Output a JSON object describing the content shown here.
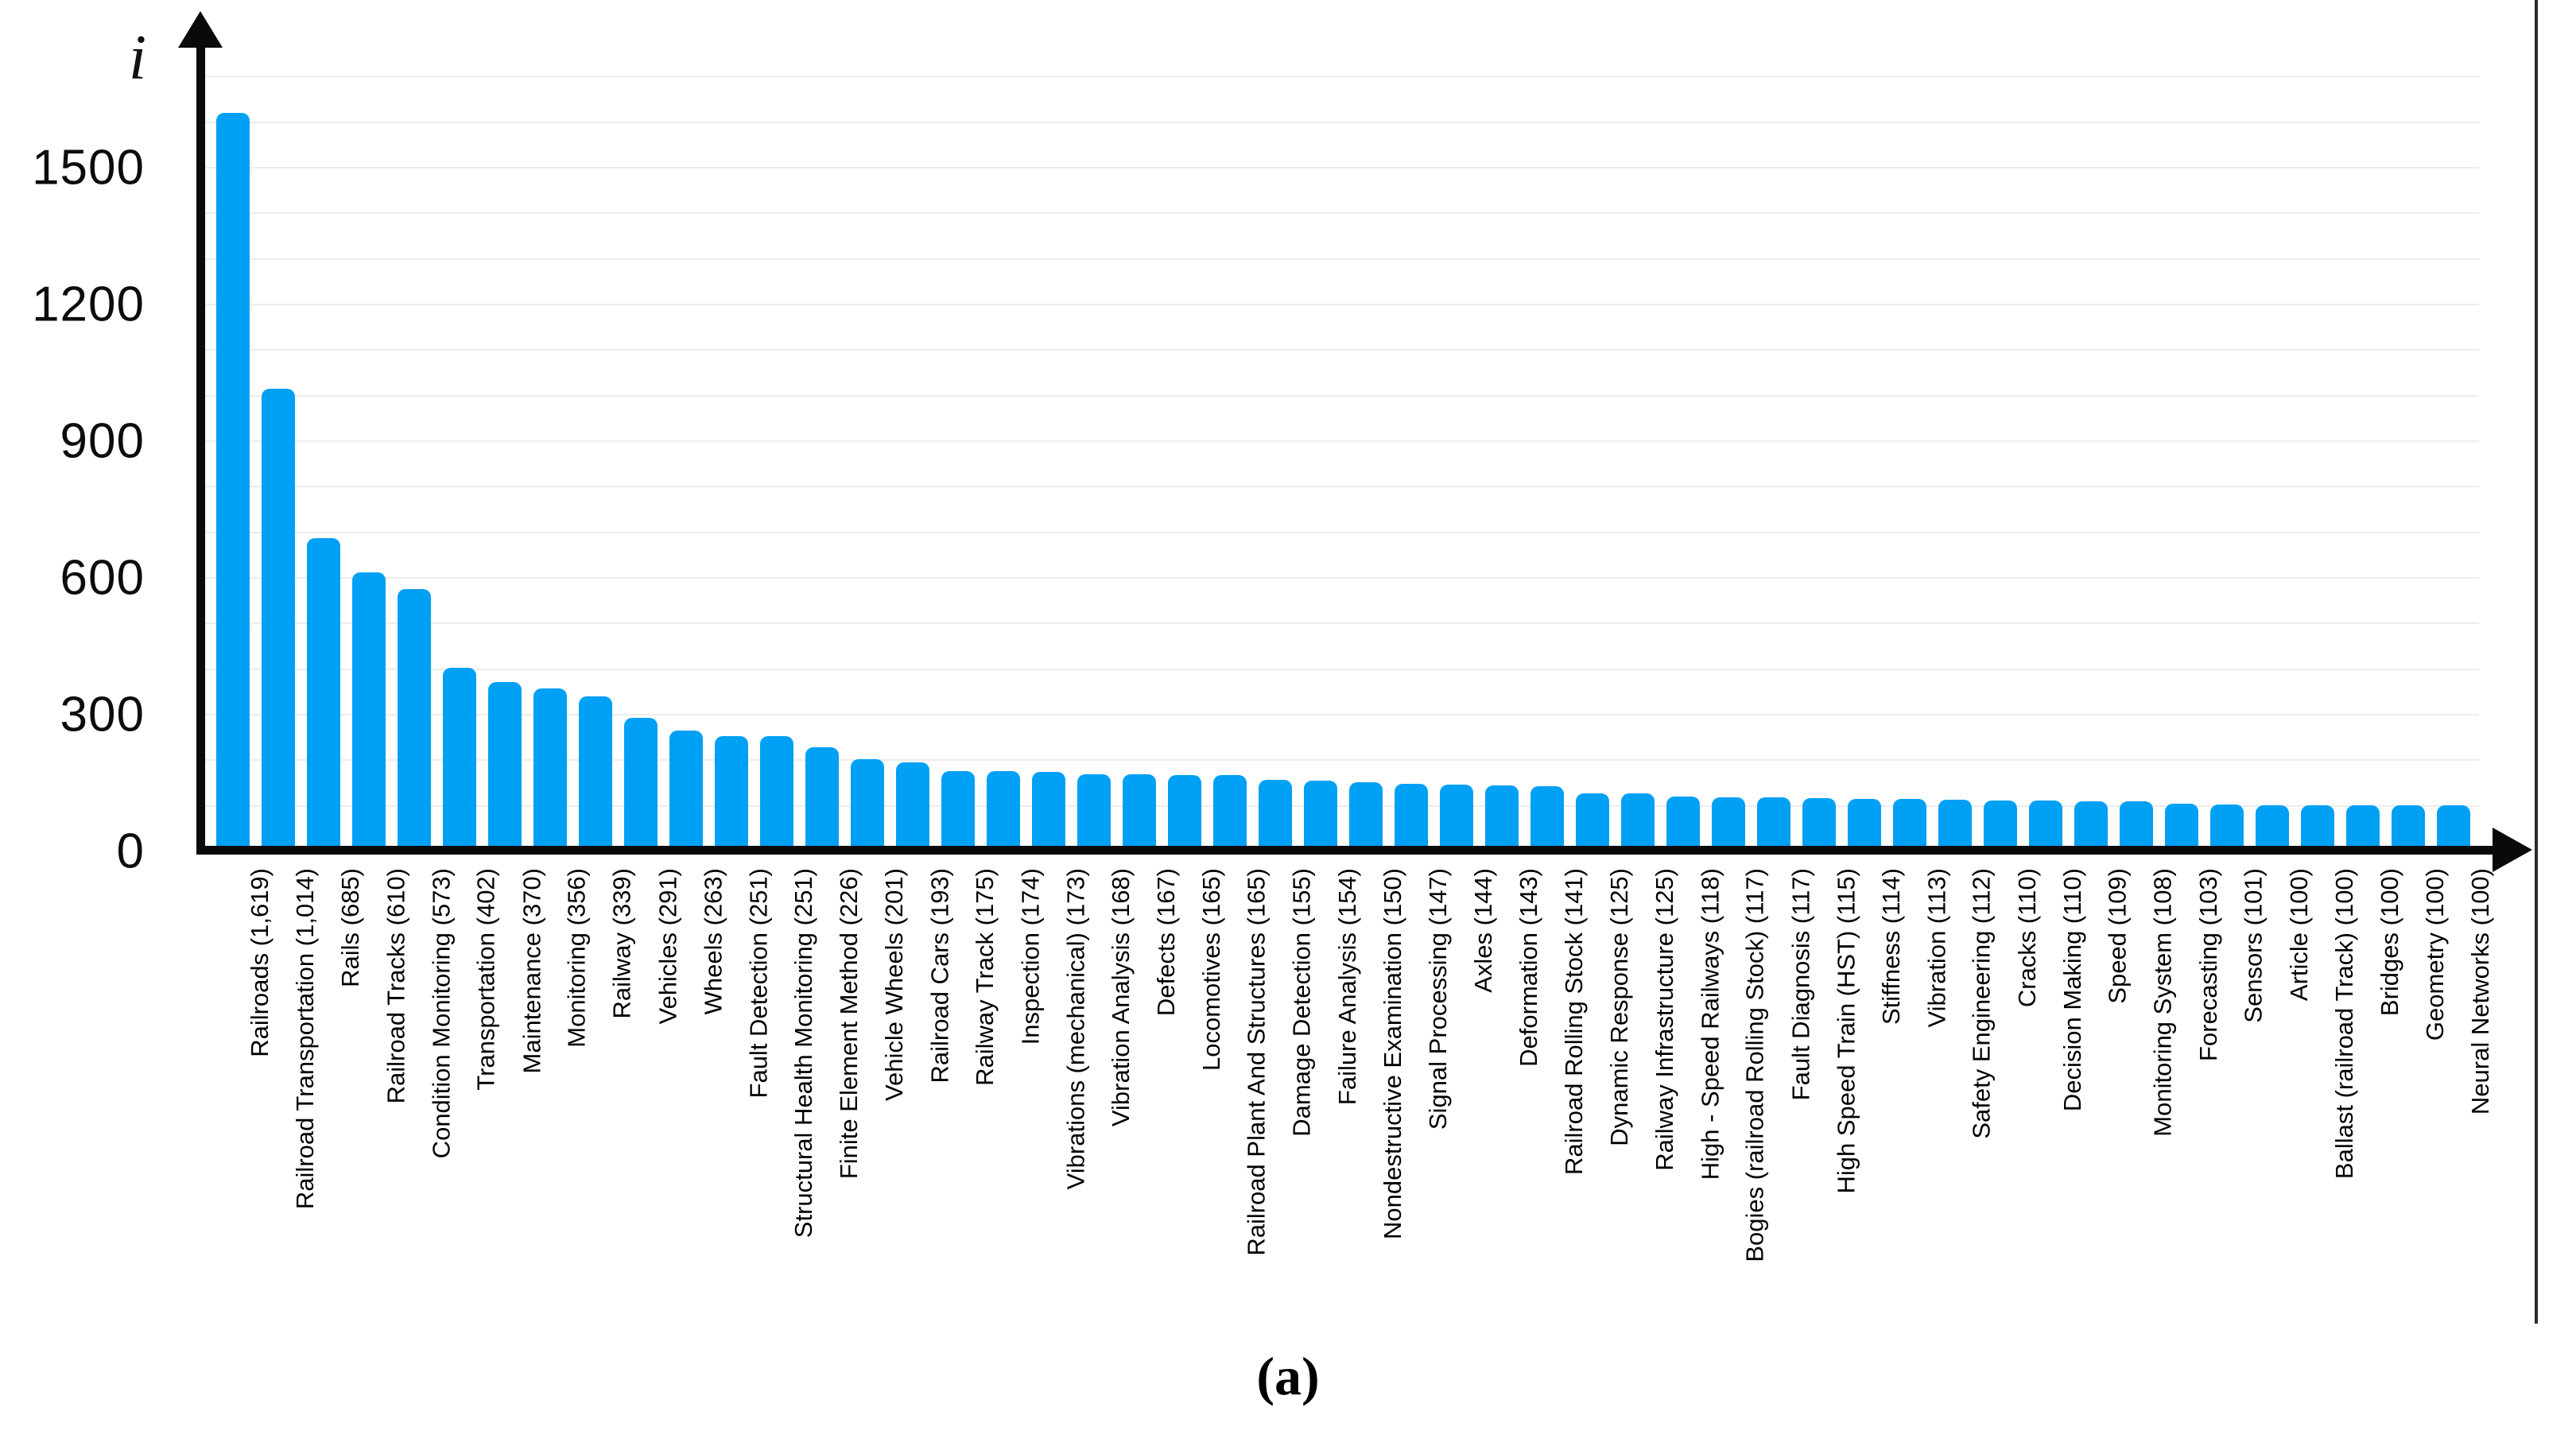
{
  "chart_data": {
    "type": "bar",
    "title": "",
    "y_axis_symbol": "i",
    "caption": "(a)",
    "bar_color": "#00a0f5",
    "grid_color": "#ececec",
    "axis_color": "#0a0a0a",
    "grid_on": true,
    "minor_grid_step": 100,
    "ylim": [
      0,
      1700
    ],
    "y_ticks": [
      0,
      300,
      600,
      900,
      1200,
      1500
    ],
    "xlabel": "",
    "ylabel": "i",
    "legend": null,
    "categories": [
      "Railroads (1,619)",
      "Railroad Transportation (1,014)",
      "Rails (685)",
      "Railroad Tracks (610)",
      "Condition Monitoring (573)",
      "Transportation (402)",
      "Maintenance (370)",
      "Monitoring (356)",
      "Railway (339)",
      "Vehicles (291)",
      "Wheels (263)",
      "Fault Detection (251)",
      "Structural Health Monitoring (251)",
      "Finite Element Method (226)",
      "Vehicle Wheels (201)",
      "Railroad Cars (193)",
      "Railway Track (175)",
      "Inspection (174)",
      "Vibrations (mechanical) (173)",
      "Vibration Analysis (168)",
      "Defects (167)",
      "Locomotives (165)",
      "Railroad Plant And Structures (165)",
      "Damage Detection (155)",
      "Failure Analysis (154)",
      "Nondestructive Examination (150)",
      "Signal Processing (147)",
      "Axles (144)",
      "Deformation (143)",
      "Railroad Rolling Stock (141)",
      "Dynamic Response (125)",
      "Railway Infrastructure (125)",
      "High - Speed Railways (118)",
      "Bogies (railroad Rolling Stock) (117)",
      "Fault Diagnosis (117)",
      "High Speed Train (HST) (115)",
      "Stiffness (114)",
      "Vibration (113)",
      "Safety Engineering (112)",
      "Cracks (110)",
      "Decision Making (110)",
      "Speed (109)",
      "Monitoring System (108)",
      "Forecasting (103)",
      "Sensors (101)",
      "Article (100)",
      "Ballast (railroad Track) (100)",
      "Bridges (100)",
      "Geometry (100)",
      "Neural Networks (100)"
    ],
    "values": [
      1619,
      1014,
      685,
      610,
      573,
      402,
      370,
      356,
      339,
      291,
      263,
      251,
      251,
      226,
      201,
      193,
      175,
      174,
      173,
      168,
      167,
      165,
      165,
      155,
      154,
      150,
      147,
      144,
      143,
      141,
      125,
      125,
      118,
      117,
      117,
      115,
      114,
      113,
      112,
      110,
      110,
      109,
      108,
      103,
      101,
      100,
      100,
      100,
      100,
      100
    ]
  }
}
